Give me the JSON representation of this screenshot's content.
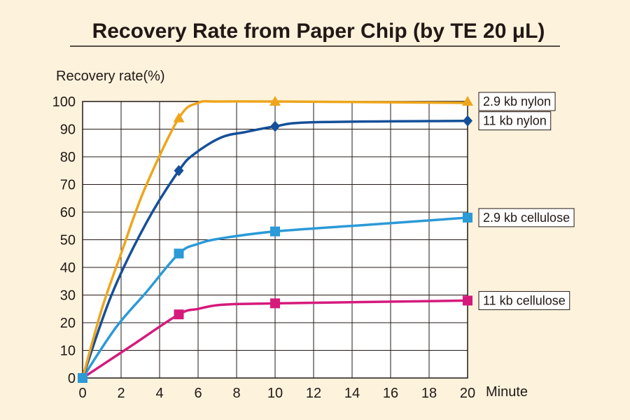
{
  "chart_data": {
    "type": "line",
    "title": "Recovery Rate from Paper Chip (by TE 20 μL)",
    "ylabel": "Recovery rate(%)",
    "xlabel": "Minute",
    "xlim": [
      0,
      20
    ],
    "ylim": [
      0,
      100
    ],
    "x_ticks": [
      "0",
      "2",
      "4",
      "6",
      "8",
      "10",
      "12",
      "14",
      "16",
      "18",
      "20"
    ],
    "y_ticks": [
      "0",
      "10",
      "20",
      "30",
      "40",
      "50",
      "60",
      "70",
      "80",
      "90",
      "100"
    ],
    "grid": true,
    "legend": "right, label at end of each line",
    "series": [
      {
        "name": "2.9 kb nylon",
        "color": "#eea51b",
        "marker": "triangle",
        "points": [
          [
            0,
            0
          ],
          [
            5,
            94
          ],
          [
            10,
            100
          ],
          [
            20,
            100
          ]
        ],
        "curve": [
          [
            0,
            0
          ],
          [
            1,
            25
          ],
          [
            2,
            45
          ],
          [
            3.2,
            68
          ],
          [
            5,
            94
          ],
          [
            6,
            99.5
          ],
          [
            7,
            100
          ],
          [
            10,
            100
          ],
          [
            20,
            99.5
          ]
        ]
      },
      {
        "name": "11 kb nylon",
        "color": "#154f99",
        "marker": "diamond",
        "points": [
          [
            0,
            0
          ],
          [
            5,
            75
          ],
          [
            10,
            91
          ],
          [
            20,
            93
          ]
        ],
        "curve": [
          [
            0,
            0
          ],
          [
            1.5,
            30
          ],
          [
            3.3,
            56
          ],
          [
            5,
            75
          ],
          [
            5.8,
            81
          ],
          [
            7.2,
            87
          ],
          [
            8.5,
            89
          ],
          [
            10,
            91
          ],
          [
            12,
            92.5
          ],
          [
            20,
            93
          ]
        ]
      },
      {
        "name": "2.9 kb cellulose",
        "color": "#2b9ad7",
        "marker": "square",
        "points": [
          [
            0,
            0
          ],
          [
            5,
            45
          ],
          [
            10,
            53
          ],
          [
            20,
            58
          ]
        ],
        "curve": [
          [
            0,
            0
          ],
          [
            1.7,
            18
          ],
          [
            3.3,
            31
          ],
          [
            5,
            45
          ],
          [
            6,
            48.5
          ],
          [
            7.2,
            50.5
          ],
          [
            10,
            53
          ],
          [
            15,
            55.5
          ],
          [
            20,
            58
          ]
        ]
      },
      {
        "name": "11 kb cellulose",
        "color": "#d51a7c",
        "marker": "square",
        "points": [
          [
            0,
            0
          ],
          [
            5,
            23
          ],
          [
            10,
            27
          ],
          [
            20,
            28
          ]
        ],
        "curve": [
          [
            0,
            0
          ],
          [
            2.5,
            11.5
          ],
          [
            5,
            23
          ],
          [
            6,
            25
          ],
          [
            7.3,
            26.5
          ],
          [
            10,
            27
          ],
          [
            20,
            28
          ]
        ]
      }
    ]
  }
}
